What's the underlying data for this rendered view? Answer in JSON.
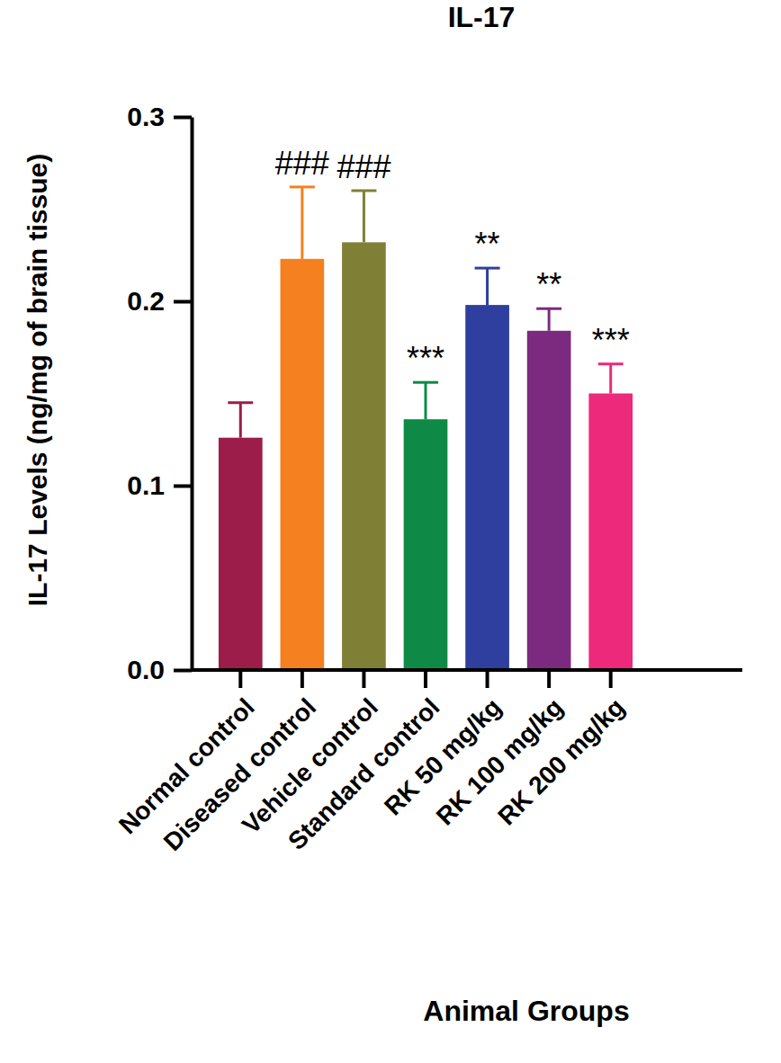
{
  "chart_data": {
    "type": "bar",
    "title": "IL-17",
    "x_label": "Animal Groups",
    "y_label": "IL-17 Levels (ng/mg of brain tissue)",
    "categories": [
      "Normal control",
      "Diseased control",
      "Vehicle control",
      "Standard control",
      "RK 50 mg/kg",
      "RK 100 mg/kg",
      "RK 200 mg/kg"
    ],
    "values": [
      0.126,
      0.223,
      0.232,
      0.136,
      0.198,
      0.184,
      0.15
    ],
    "errors": [
      0.019,
      0.039,
      0.028,
      0.02,
      0.02,
      0.012,
      0.016
    ],
    "colors": [
      "#9c1c4a",
      "#f4801f",
      "#7f8035",
      "#0e8a46",
      "#2e3f9f",
      "#7b2a7f",
      "#ec297b"
    ],
    "annotations": [
      {
        "category": "Diseased control",
        "text": "###"
      },
      {
        "category": "Vehicle control",
        "text": "###"
      },
      {
        "category": "Standard control",
        "text": "***"
      },
      {
        "category": "RK 50 mg/kg",
        "text": "**"
      },
      {
        "category": "RK 100 mg/kg",
        "text": "**"
      },
      {
        "category": "RK 200 mg/kg",
        "text": "***"
      }
    ],
    "ylim": [
      0,
      0.3
    ],
    "yticks": [
      {
        "value": 0,
        "label": "0.0"
      },
      0.1,
      0.2,
      0.3
    ],
    "grid": false
  }
}
